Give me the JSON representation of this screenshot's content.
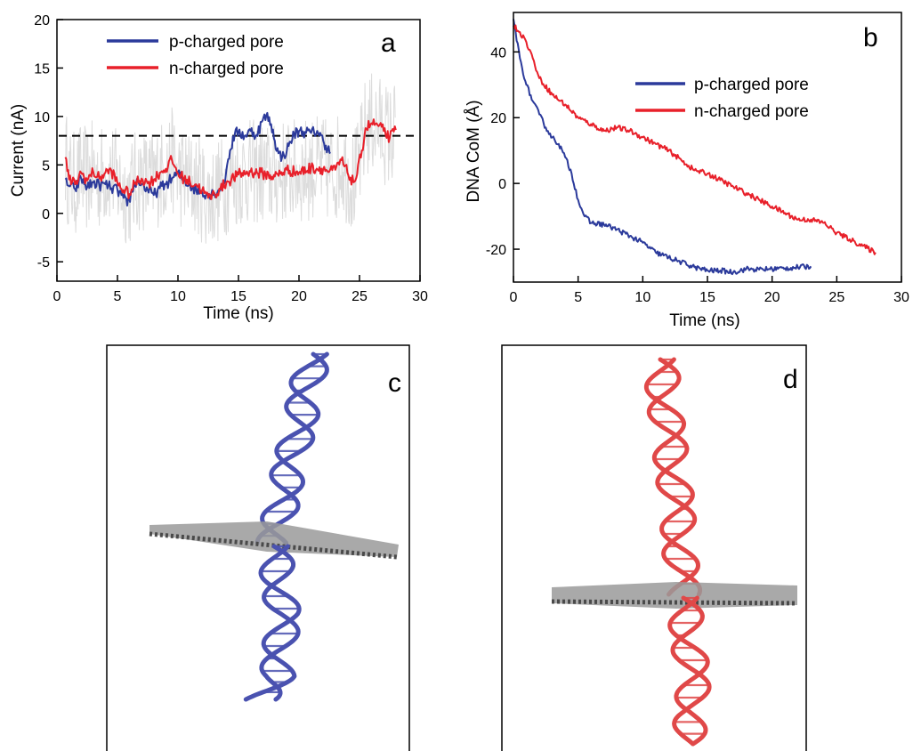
{
  "chart_data": [
    {
      "panel": "a",
      "type": "line",
      "xlabel": "Time (ns)",
      "ylabel": "Current (nA)",
      "xlim": [
        0,
        30
      ],
      "ylim": [
        -7,
        20
      ],
      "xticks": [
        0,
        5,
        10,
        15,
        20,
        25,
        30
      ],
      "yticks": [
        -5,
        0,
        5,
        10,
        15,
        20
      ],
      "legend_position": "top-left",
      "reference_line_y": 8,
      "series": [
        {
          "name": "p-charged pore",
          "color": "#2b3a9b",
          "x": [
            0.7,
            1,
            1.5,
            2,
            2.5,
            3,
            3.5,
            4,
            4.5,
            5,
            5.5,
            5.8,
            6.2,
            6.6,
            7,
            7.5,
            8,
            8.5,
            9,
            9.5,
            10,
            10.5,
            11,
            11.5,
            12,
            12.5,
            13,
            13.5,
            13.8,
            14,
            14.3,
            14.7,
            15,
            15.5,
            16,
            16.5,
            17,
            17.3,
            17.7,
            18,
            18.3,
            18.6,
            19,
            19.3,
            19.6,
            20,
            20.5,
            21,
            21.5,
            22,
            22.6
          ],
          "y": [
            3.5,
            2.8,
            2.5,
            3.6,
            2.7,
            3.2,
            2.9,
            3.0,
            2.6,
            2.4,
            1.6,
            0.8,
            2.2,
            3.5,
            3.0,
            2.4,
            1.9,
            2.6,
            3.0,
            3.6,
            4.1,
            3.4,
            2.9,
            2.4,
            2.2,
            2.0,
            2.1,
            2.5,
            3.0,
            4.5,
            6.5,
            8.2,
            8.4,
            8.0,
            8.5,
            8.1,
            9.6,
            10.1,
            9.2,
            7.5,
            6.2,
            5.8,
            6.5,
            7.4,
            8.2,
            8.5,
            8.4,
            8.3,
            8.5,
            7.5,
            6.2
          ]
        },
        {
          "name": "n-charged pore",
          "color": "#e8202a",
          "x": [
            0.7,
            1,
            1.5,
            2,
            2.5,
            3,
            3.5,
            4,
            4.5,
            5,
            5.5,
            6,
            6.5,
            7,
            7.5,
            8,
            8.5,
            9,
            9.5,
            10,
            10.5,
            11,
            11.5,
            12,
            12.5,
            13,
            13.5,
            14,
            15,
            16,
            17,
            18,
            19,
            20,
            21,
            22,
            22.5,
            23,
            23.5,
            24,
            24.5,
            24.8,
            25.2,
            25.5,
            26,
            26.5,
            27,
            27.5,
            28
          ],
          "y": [
            5.8,
            3.5,
            3.0,
            4.2,
            3.4,
            4.3,
            3.6,
            4.2,
            4.4,
            3.1,
            2.4,
            2.0,
            3.2,
            3.6,
            3.1,
            3.5,
            4.2,
            4.6,
            5.5,
            4.1,
            3.6,
            3.2,
            3.0,
            2.4,
            1.6,
            2.0,
            2.5,
            3.2,
            4.0,
            4.3,
            4.1,
            3.8,
            4.5,
            4.2,
            4.7,
            4.6,
            4.3,
            4.5,
            5.5,
            4.2,
            3.2,
            4.0,
            6.5,
            8.8,
            9.3,
            9.1,
            8.5,
            7.8,
            8.6
          ]
        }
      ]
    },
    {
      "panel": "b",
      "type": "line",
      "xlabel": "Time (ns)",
      "ylabel": "DNA CoM (Å)",
      "xlim": [
        0,
        30
      ],
      "ylim": [
        -30,
        52
      ],
      "xticks": [
        0,
        5,
        10,
        15,
        20,
        25,
        30
      ],
      "yticks": [
        -20,
        0,
        20,
        40
      ],
      "legend_position": "top-right",
      "series": [
        {
          "name": "p-charged pore",
          "color": "#2b3a9b",
          "x": [
            0,
            0.5,
            1,
            1.5,
            2,
            2.5,
            3,
            3.5,
            4,
            4.5,
            5,
            5.5,
            6,
            7,
            8,
            9,
            10,
            11,
            12,
            13,
            14,
            15,
            16,
            17,
            18,
            19,
            20,
            21,
            22,
            23
          ],
          "y": [
            50,
            38,
            30,
            25,
            21,
            17,
            14,
            12,
            8,
            3,
            -5,
            -10,
            -12,
            -12.5,
            -14,
            -16,
            -18,
            -21,
            -22.5,
            -24,
            -25.5,
            -26.5,
            -26.5,
            -27,
            -26,
            -26.2,
            -26,
            -25.8,
            -25.5,
            -25.2
          ]
        },
        {
          "name": "n-charged pore",
          "color": "#e8202a",
          "x": [
            0,
            0.5,
            1,
            1.5,
            2,
            3,
            4,
            5,
            6,
            7,
            8,
            9,
            10,
            11,
            12,
            13,
            14,
            15,
            16,
            17,
            18,
            19,
            20,
            21,
            22,
            23,
            24,
            25,
            26,
            27,
            28
          ],
          "y": [
            48,
            46,
            43,
            38,
            32,
            27,
            24,
            20,
            18,
            16,
            17,
            16,
            14,
            12,
            10,
            7,
            4,
            3,
            1,
            -1,
            -3,
            -5,
            -7,
            -9,
            -11,
            -11,
            -12,
            -15,
            -17,
            -19,
            -21
          ]
        }
      ]
    }
  ],
  "panels": {
    "a": {
      "label": "a"
    },
    "b": {
      "label": "b"
    },
    "c": {
      "label": "c",
      "dna_color": "#4a52b0"
    },
    "d": {
      "label": "d",
      "dna_color": "#e04848"
    }
  },
  "colors": {
    "noise_trace": "#dcdcdc",
    "membrane": "#808080",
    "membrane_edge": "#4a4a4a"
  }
}
